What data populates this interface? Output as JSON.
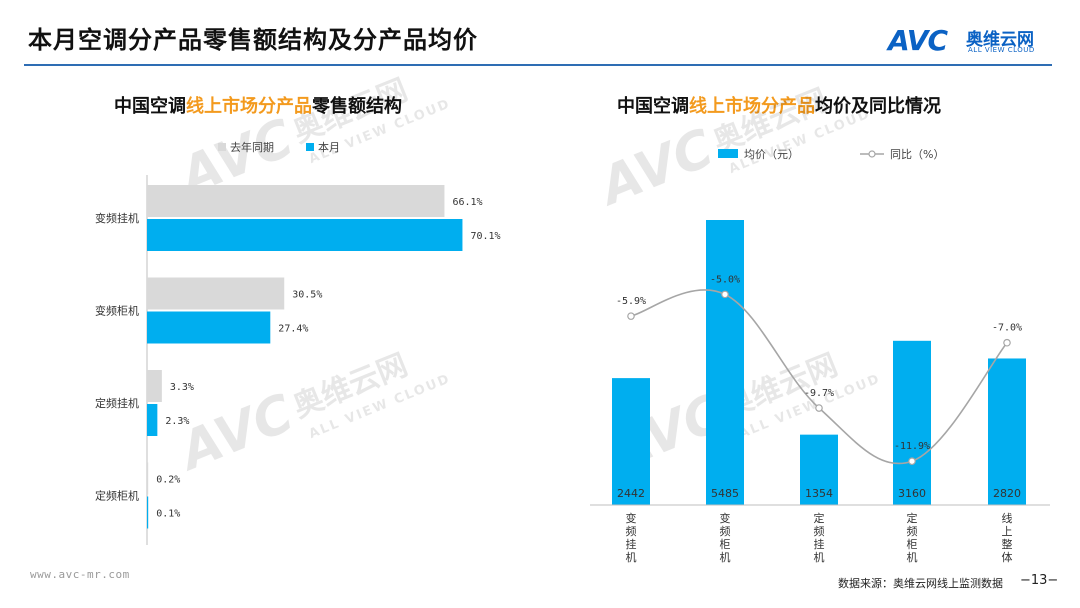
{
  "page": {
    "title": "本月空调分产品零售额结构及分产品均价",
    "logo_mark": "AVC",
    "logo_cn": "奥维云网",
    "logo_en": "ALL VIEW CLOUD",
    "watermark_mark": "AVC",
    "watermark_cn": "奥维云网",
    "watermark_en": "ALL VIEW CLOUD",
    "footer_url": "www.avc-mr.com",
    "footer_source": "数据来源：奥维云网线上监测数据",
    "page_number": "−13−",
    "accent_color": "#2e6db4",
    "highlight_color": "#f39a1e"
  },
  "left_title": {
    "pre": "中国空调",
    "hl": "线上市场分产品",
    "post": "零售额结构"
  },
  "right_title": {
    "pre": "中国空调",
    "hl": "线上市场分产品",
    "post": "均价及同比情况"
  },
  "chart_data": [
    {
      "type": "bar",
      "orientation": "horizontal",
      "title": "中国空调线上市场分产品零售额结构",
      "categories": [
        "变频挂机",
        "变频柜机",
        "定频挂机",
        "定频柜机"
      ],
      "series": [
        {
          "name": "去年同期",
          "values": [
            66.1,
            30.5,
            3.3,
            0.2
          ],
          "labels": [
            "66.1%",
            "30.5%",
            "3.3%",
            "0.2%"
          ],
          "color": "#d9d9d9"
        },
        {
          "name": "本月",
          "values": [
            70.1,
            27.4,
            2.3,
            0.1
          ],
          "labels": [
            "70.1%",
            "27.4%",
            "2.3%",
            "0.1%"
          ],
          "color": "#00aeef"
        }
      ],
      "xlim": [
        0,
        100
      ],
      "legend": "top-left",
      "grid": false
    },
    {
      "type": "bar",
      "title": "中国空调线上市场分产品均价及同比情况",
      "categories": [
        "变频挂机",
        "变频柜机",
        "定频挂机",
        "定频柜机",
        "线上整体"
      ],
      "series": [
        {
          "name": "均价（元）",
          "type": "bar",
          "values": [
            2442,
            5485,
            1354,
            3160,
            2820
          ],
          "color": "#00aeef"
        },
        {
          "name": "同比（%）",
          "type": "line",
          "values": [
            -5.9,
            -5.0,
            -9.7,
            -11.9,
            -7.0
          ],
          "labels": [
            "-5.9%",
            "-5.0%",
            "-9.7%",
            "-11.9%",
            "-7.0%"
          ],
          "color": "#a6a6a6"
        }
      ],
      "ylim_bar": [
        0,
        6000
      ],
      "ylim_line": [
        -14,
        -3
      ],
      "legend": "top-center",
      "grid": false
    }
  ]
}
